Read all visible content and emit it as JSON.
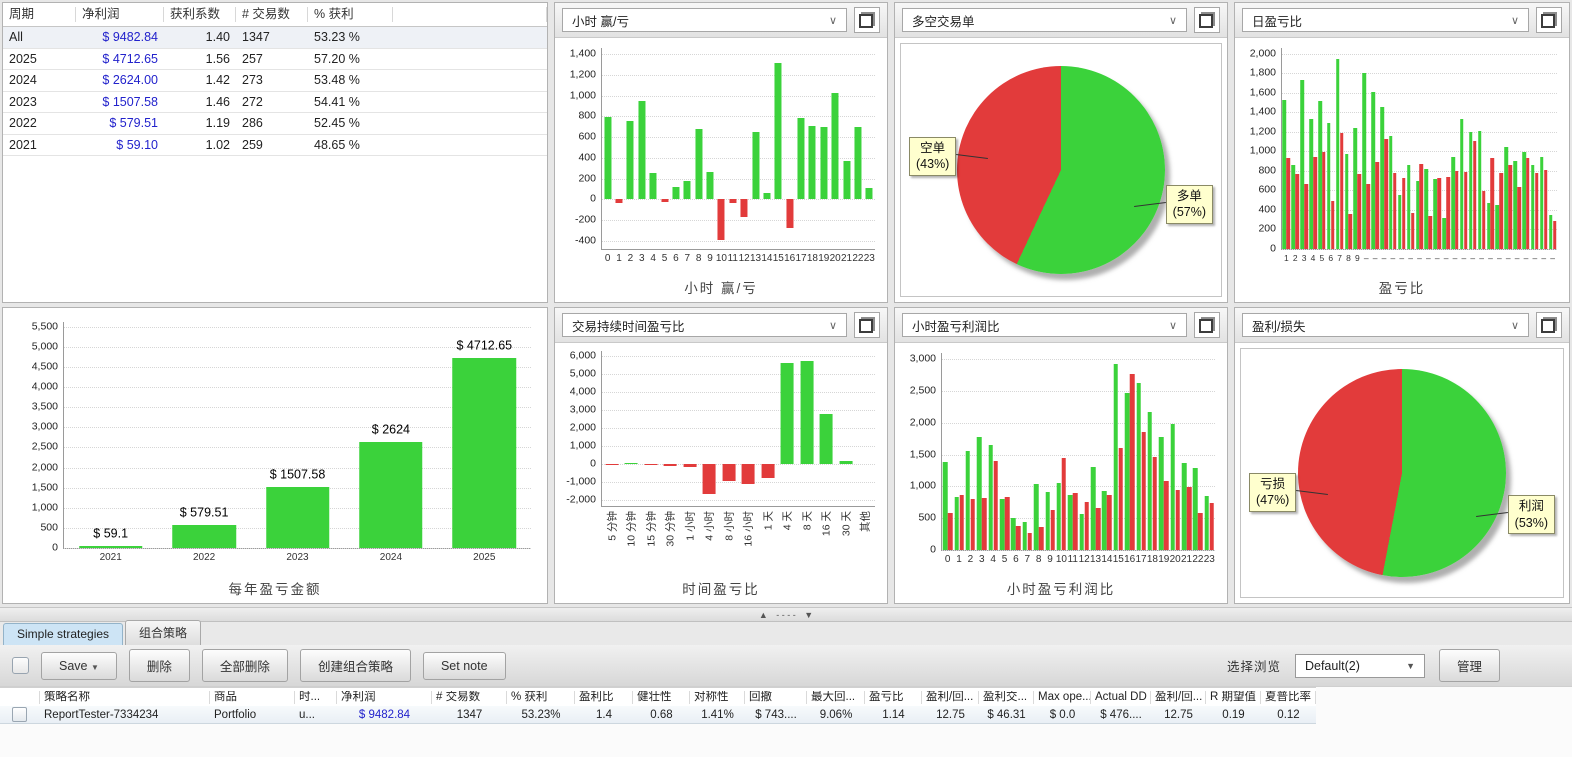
{
  "colors": {
    "green": "#3bd23b",
    "red": "#e23b3b",
    "profit_blue": "#2222cc"
  },
  "icons": {
    "chevron_down": "∨",
    "arrow_down": "▼",
    "collapse_up": "▲",
    "collapse_down": "▼",
    "splitter_dashes": "- - - -"
  },
  "stats_table": {
    "headers": [
      "周期",
      "净利润",
      "获利系数",
      "# 交易数",
      "% 获利"
    ],
    "rows": [
      [
        "All",
        "$ 9482.84",
        "1.40",
        "1347",
        "53.23 %"
      ],
      [
        "2025",
        "$ 4712.65",
        "1.56",
        "257",
        "57.20 %"
      ],
      [
        "2024",
        "$ 2624.00",
        "1.42",
        "273",
        "53.48 %"
      ],
      [
        "2023",
        "$ 1507.58",
        "1.46",
        "272",
        "54.41 %"
      ],
      [
        "2022",
        "$ 579.51",
        "1.19",
        "286",
        "52.45 %"
      ],
      [
        "2021",
        "$ 59.10",
        "1.02",
        "259",
        "48.65 %"
      ]
    ]
  },
  "panels": {
    "hour_winloss": {
      "title": "小时 赢/亏",
      "type": "bar",
      "xlabel": "小时 赢/亏",
      "categories": [
        "0",
        "1",
        "2",
        "3",
        "4",
        "5",
        "6",
        "7",
        "8",
        "9",
        "10",
        "11",
        "12",
        "13",
        "14",
        "15",
        "16",
        "17",
        "18",
        "19",
        "20",
        "21",
        "22",
        "23"
      ],
      "values": [
        790,
        -40,
        760,
        950,
        255,
        -30,
        115,
        175,
        675,
        265,
        -390,
        -40,
        -170,
        645,
        65,
        1320,
        -280,
        780,
        710,
        695,
        1025,
        365,
        700,
        105
      ],
      "ticks": [
        -400,
        1400,
        200
      ],
      "scale": [
        -480,
        1460
      ]
    },
    "long_short_pie": {
      "title": "多空交易单",
      "type": "pie",
      "slices": [
        {
          "label": "多单",
          "pct": 57,
          "color": "green"
        },
        {
          "label": "空单",
          "pct": 43,
          "color": "red"
        }
      ]
    },
    "daily_pl": {
      "title": "日盈亏比",
      "type": "bar",
      "xlabel": "盈亏比",
      "xticks": [
        "1",
        "2",
        "3",
        "4",
        "5",
        "6",
        "7",
        "8",
        "9",
        "–",
        "–",
        "–",
        "–",
        "–",
        "–",
        "–",
        "–",
        "–",
        "–",
        "–",
        "–",
        "–",
        "–",
        "–",
        "–",
        "–",
        "–",
        "–",
        "–",
        "–",
        "–"
      ],
      "series": [
        {
          "name": "win",
          "values": [
            1530,
            865,
            1730,
            1330,
            1520,
            1290,
            1945,
            975,
            1240,
            1800,
            1605,
            1455,
            1155,
            555,
            860,
            700,
            825,
            720,
            315,
            945,
            1335,
            1195,
            1205,
            475,
            450,
            1050,
            900,
            995,
            865,
            945,
            345
          ]
        },
        {
          "name": "loss",
          "values": [
            930,
            770,
            665,
            945,
            990,
            495,
            1190,
            355,
            770,
            670,
            890,
            1130,
            775,
            730,
            370,
            875,
            340,
            725,
            735,
            795,
            790,
            1105,
            590,
            935,
            780,
            865,
            635,
            935,
            780,
            805,
            285
          ]
        }
      ],
      "ticks": [
        0,
        2000,
        200
      ],
      "scale": [
        0,
        2060
      ]
    },
    "yearly": {
      "title": "每年盈亏金额",
      "type": "bar",
      "xlabel": "每年盈亏金额",
      "categories": [
        "2021",
        "2022",
        "2023",
        "2024",
        "2025"
      ],
      "values": [
        59.1,
        579.51,
        1507.58,
        2624,
        4712.65
      ],
      "labels": [
        "$ 59.1",
        "$ 579.51",
        "$ 1507.58",
        "$ 2624",
        "$ 4712.65"
      ],
      "ticks": [
        0,
        5500,
        500
      ],
      "scale": [
        0,
        5620
      ]
    },
    "duration_pl": {
      "title": "交易持续时间盈亏比",
      "type": "bar",
      "xlabel": "时间盈亏比",
      "categories": [
        "5 分钟",
        "10 分钟",
        "15 分钟",
        "30 分钟",
        "1 小时",
        "4 小时",
        "8 小时",
        "16 小时",
        "1 天",
        "4 天",
        "8 天",
        "16 天",
        "30 天",
        "其他"
      ],
      "values": [
        -60,
        60,
        -25,
        -150,
        -175,
        -1700,
        -950,
        -1100,
        -800,
        5600,
        5750,
        2750,
        150,
        0
      ],
      "ticks": [
        -2000,
        6000,
        1000
      ],
      "scale": [
        -2350,
        6280
      ]
    },
    "hourly_pl": {
      "title": "小时盈亏利润比",
      "type": "bar",
      "xlabel": "小时盈亏利润比",
      "xticks": [
        "0",
        "1",
        "2",
        "3",
        "4",
        "5",
        "6",
        "7",
        "8",
        "9",
        "10",
        "11",
        "12",
        "13",
        "14",
        "15",
        "16",
        "17",
        "18",
        "19",
        "20",
        "21",
        "22",
        "23"
      ],
      "series": [
        {
          "name": "win",
          "values": [
            1390,
            830,
            1560,
            1780,
            1655,
            810,
            500,
            440,
            1045,
            905,
            1050,
            865,
            570,
            1310,
            930,
            2930,
            2475,
            2635,
            2175,
            1780,
            1975,
            1370,
            1285,
            845
          ]
        },
        {
          "name": "loss",
          "values": [
            590,
            870,
            800,
            815,
            1405,
            840,
            380,
            270,
            365,
            635,
            1445,
            900,
            750,
            660,
            860,
            1610,
            2765,
            1860,
            1465,
            1080,
            950,
            995,
            575,
            740
          ]
        }
      ],
      "ticks": [
        0,
        3000,
        500
      ],
      "scale": [
        0,
        3100
      ]
    },
    "profit_loss_pie": {
      "title": "盈利/损失",
      "type": "pie",
      "slices": [
        {
          "label": "利润",
          "pct": 53,
          "color": "green"
        },
        {
          "label": "亏损",
          "pct": 47,
          "color": "red"
        }
      ]
    }
  },
  "tabs": [
    {
      "label": "Simple strategies",
      "active": true
    },
    {
      "label": "组合策略",
      "active": false
    }
  ],
  "toolbar": {
    "save_label": "Save",
    "delete_label": "删除",
    "delete_all_label": "全部删除",
    "create_combo_label": "创建组合策略",
    "set_note_label": "Set note",
    "browse_label": "选择浏览",
    "browse_value": "Default(2)",
    "manage_label": "管理"
  },
  "strategy_table": {
    "headers": [
      "策略名称",
      "商品",
      "时...",
      "净利润",
      "# 交易数",
      "% 获利",
      "盈利比",
      "健壮性",
      "对称性",
      "回撤",
      "最大回...",
      "盈亏比",
      "盈利/回...",
      "盈利交...",
      "Max ope...",
      "Actual DD",
      "盈利/回...",
      "R 期望值",
      "夏普比率"
    ],
    "row": [
      "ReportTester-7334234",
      "Portfolio",
      "u...",
      "$ 9482.84",
      "1347",
      "53.23%",
      "1.4",
      "0.68",
      "1.41%",
      "$ 743....",
      "9.06%",
      "1.14",
      "12.75",
      "$ 46.31",
      "$ 0.0",
      "$ 476....",
      "12.75",
      "0.19",
      "0.12"
    ]
  }
}
